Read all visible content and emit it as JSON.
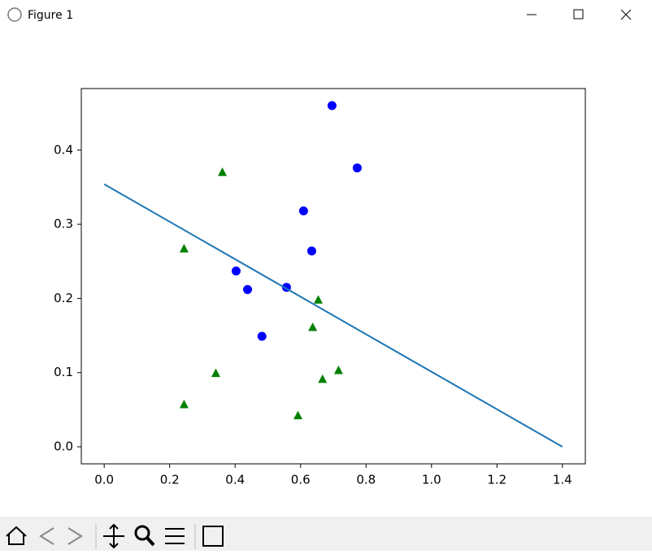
{
  "window": {
    "title": "Figure 1"
  },
  "chart_data": {
    "type": "scatter",
    "xlim": [
      -0.07,
      1.47
    ],
    "ylim": [
      -0.023,
      0.483
    ],
    "xticks": [
      {
        "value": 0,
        "label": "0.0"
      },
      0.2,
      0.4,
      0.6,
      0.8,
      {
        "value": 1,
        "label": "1.0"
      },
      1.2,
      1.4
    ],
    "yticks": [
      {
        "value": 0,
        "label": "0.0"
      },
      0.1,
      0.2,
      0.3,
      0.4
    ],
    "series": [
      {
        "type": "scatter",
        "marker": "circle",
        "color": "#0000ff",
        "x": [
          0.696,
          0.773,
          0.609,
          0.634,
          0.403,
          0.438,
          0.557,
          0.482
        ],
        "values": [
          0.46,
          0.376,
          0.318,
          0.264,
          0.237,
          0.212,
          0.215,
          0.149
        ]
      },
      {
        "type": "scatter",
        "marker": "triangle",
        "color": "#008000",
        "x": [
          0.361,
          0.244,
          0.654,
          0.637,
          0.341,
          0.716,
          0.667,
          0.244,
          0.592
        ],
        "values": [
          0.37,
          0.267,
          0.198,
          0.161,
          0.099,
          0.103,
          0.091,
          0.057,
          0.042
        ]
      },
      {
        "type": "line",
        "color": "#1f77b4",
        "x": [
          0,
          1.4
        ],
        "values": [
          0.354,
          0
        ]
      }
    ]
  }
}
